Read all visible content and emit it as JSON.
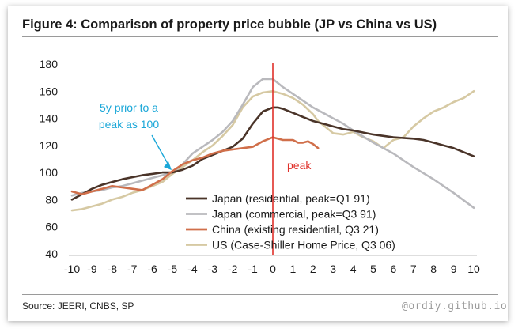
{
  "title": "Figure 4: Comparison of property price bubble (JP vs China vs US)",
  "source": "Source: JEERI, CNBS, SP",
  "watermark": "@ordiy.github.io",
  "chart_data": {
    "type": "line",
    "title": "Figure 4: Comparison of property price bubble (JP vs China vs US)",
    "xlabel": "",
    "ylabel": "",
    "xlim": [
      -10,
      10
    ],
    "ylim": [
      40,
      180
    ],
    "x_ticks": [
      -10,
      -9,
      -8,
      -7,
      -6,
      -5,
      -4,
      -3,
      -2,
      -1,
      0,
      1,
      2,
      3,
      4,
      5,
      6,
      7,
      8,
      9,
      10
    ],
    "y_ticks": [
      40,
      60,
      80,
      100,
      120,
      140,
      160,
      180
    ],
    "grid": false,
    "legend_position": "bottom-center",
    "annotations": [
      {
        "text_lines": [
          "5y prior to a",
          "peak as 100"
        ],
        "color": "#1aa7d8",
        "arrow_to": {
          "x": -5,
          "y": 100
        }
      },
      {
        "text": "peak",
        "color": "#e0302a",
        "vline_x": 0
      }
    ],
    "series": [
      {
        "name": "Japan (residential, peak=Q1 91)",
        "color": "#4a3429",
        "x": [
          -10,
          -9.5,
          -9,
          -8.5,
          -8,
          -7.5,
          -7,
          -6.5,
          -6,
          -5.5,
          -5,
          -4.5,
          -4,
          -3.5,
          -3,
          -2.5,
          -2,
          -1.5,
          -1,
          -0.5,
          0,
          0.25,
          0.5,
          1,
          1.5,
          2,
          2.5,
          3,
          3.5,
          4,
          5,
          6,
          7,
          7.5,
          8,
          8.5,
          9,
          9.5,
          10
        ],
        "y": [
          80,
          84,
          88,
          91,
          93,
          95,
          96.5,
          98,
          99,
          100,
          100,
          102,
          105,
          110,
          113,
          116,
          119,
          125,
          136,
          145,
          148,
          148,
          147,
          144,
          141,
          138,
          136,
          134,
          132,
          131,
          128,
          126,
          125,
          124,
          122,
          120,
          118,
          115,
          112
        ]
      },
      {
        "name": "Japan (commercial, peak=Q3 91)",
        "color": "#b9b9bd",
        "x": [
          -10,
          -9.5,
          -9,
          -8.5,
          -8,
          -7.5,
          -7,
          -6.5,
          -6,
          -5.5,
          -5,
          -4.5,
          -4,
          -3.5,
          -3,
          -2.5,
          -2,
          -1.5,
          -1,
          -0.75,
          -0.5,
          0,
          0.5,
          1,
          1.5,
          2,
          2.5,
          3,
          3.5,
          4,
          5,
          6,
          7,
          8,
          9,
          10
        ],
        "y": [
          83,
          85,
          86,
          87,
          89,
          90,
          92,
          94,
          96,
          98,
          100,
          106,
          114,
          119,
          124,
          130,
          138,
          150,
          163,
          166,
          169,
          169,
          163,
          158,
          153,
          148,
          144,
          140,
          136,
          131,
          122,
          114,
          104,
          95,
          85,
          74
        ]
      },
      {
        "name": "China (existing residential, Q3 21)",
        "color": "#d06f4a",
        "x": [
          -10,
          -9.5,
          -9,
          -8.5,
          -8,
          -7.5,
          -7,
          -6.5,
          -6,
          -5.5,
          -5,
          -4.5,
          -4,
          -3.5,
          -3,
          -2.5,
          -2,
          -1.5,
          -1,
          -0.5,
          0,
          0.5,
          1,
          1.25,
          1.5,
          1.75,
          2,
          2.25
        ],
        "y": [
          86,
          84,
          86,
          88,
          90,
          89,
          88,
          87,
          91,
          95,
          101,
          106,
          109,
          111,
          114,
          116,
          117,
          118,
          119,
          123,
          126,
          124,
          124,
          122,
          122,
          123,
          121,
          118
        ]
      },
      {
        "name": "US (Case-Shiller Home Price, Q3 06)",
        "color": "#d6c9a3",
        "x": [
          -10,
          -9.5,
          -9,
          -8.5,
          -8,
          -7.5,
          -7,
          -6.5,
          -6,
          -5.5,
          -5,
          -4.5,
          -4,
          -3.5,
          -3,
          -2.5,
          -2,
          -1.5,
          -1,
          -0.5,
          0,
          0.5,
          1,
          1.5,
          2,
          2.25,
          2.5,
          3,
          3.5,
          4,
          4.5,
          5,
          5.5,
          6,
          6.5,
          7,
          7.5,
          8,
          8.5,
          9,
          9.5,
          10
        ],
        "y": [
          72,
          73,
          75,
          77,
          80,
          82,
          85,
          87,
          90,
          93,
          99,
          104,
          109,
          115,
          120,
          127,
          135,
          148,
          156,
          159,
          160,
          158,
          155,
          150,
          143,
          138,
          135,
          129,
          128,
          130,
          126,
          123,
          118,
          124,
          126,
          134,
          140,
          145,
          148,
          152,
          155,
          160
        ]
      }
    ]
  }
}
